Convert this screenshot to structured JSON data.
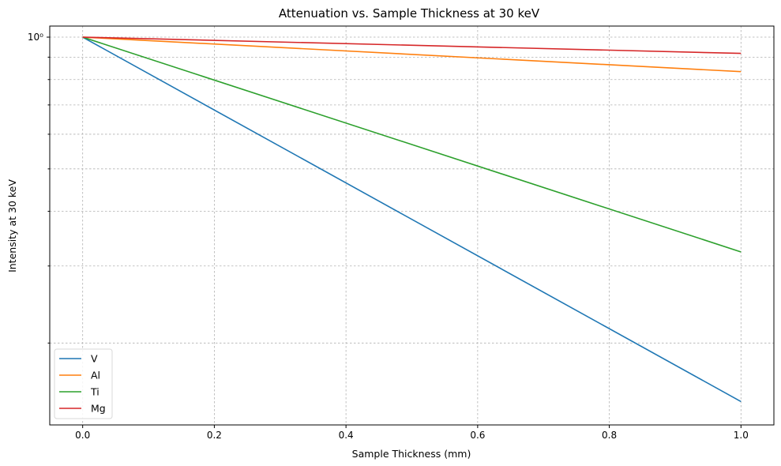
{
  "chart_data": {
    "type": "line",
    "title": "Attenuation vs. Sample Thickness at 30 keV",
    "xlabel": "Sample Thickness (mm)",
    "ylabel": "Intensity at 30 keV",
    "xscale": "linear",
    "yscale": "log",
    "xlim": [
      -0.05,
      1.05
    ],
    "ylim": [
      0.13,
      1.06
    ],
    "x_ticks": [
      0.0,
      0.2,
      0.4,
      0.6,
      0.8,
      1.0
    ],
    "x_tick_labels": [
      "0.0",
      "0.2",
      "0.4",
      "0.6",
      "0.8",
      "1.0"
    ],
    "y_major_ticks": [
      1.0
    ],
    "y_major_tick_labels": [
      "10⁰"
    ],
    "y_minor_ticks": [
      0.2,
      0.3,
      0.4,
      0.5,
      0.6,
      0.7,
      0.8,
      0.9
    ],
    "grid": true,
    "legend_position": "lower-left",
    "series": [
      {
        "name": "V",
        "color": "#1f77b4",
        "x": [
          0.0,
          1.0
        ],
        "y": [
          1.0,
          0.147
        ]
      },
      {
        "name": "Al",
        "color": "#ff7f0e",
        "x": [
          0.0,
          1.0
        ],
        "y": [
          1.0,
          0.834
        ]
      },
      {
        "name": "Ti",
        "color": "#2ca02c",
        "x": [
          0.0,
          1.0
        ],
        "y": [
          1.0,
          0.323
        ]
      },
      {
        "name": "Mg",
        "color": "#d62728",
        "x": [
          0.0,
          1.0
        ],
        "y": [
          1.0,
          0.918
        ]
      }
    ]
  }
}
